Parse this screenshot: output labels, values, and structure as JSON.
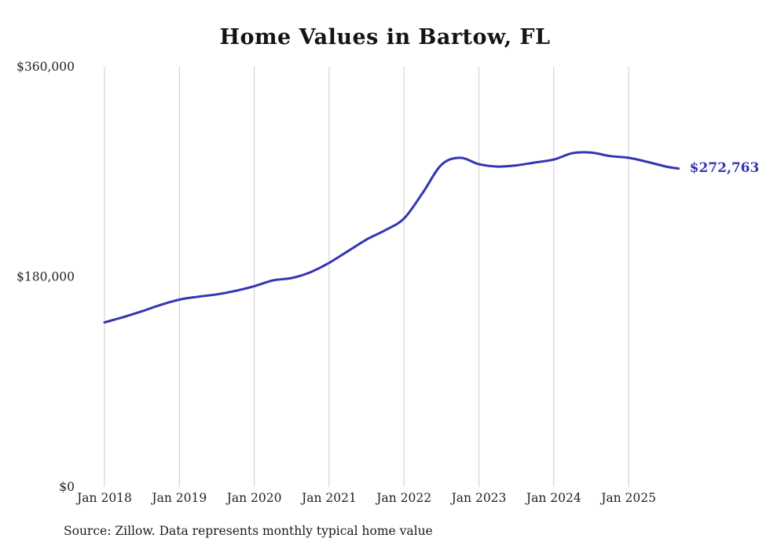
{
  "title": "Home Values in Bartow, FL",
  "source": "Source: Zillow. Data represents monthly typical home value",
  "latest_value_label": "$272,763",
  "colors": {
    "line": "#3535b2",
    "gridline": "#cccccc",
    "axis_text": "#222222",
    "label_text": "#3535b2"
  },
  "chart_data": {
    "type": "line",
    "title": "Home Values in Bartow, FL",
    "xlabel": "",
    "ylabel": "",
    "ylim": [
      0,
      360000
    ],
    "grid": "vertical-only",
    "legend": "none",
    "y_ticks": [
      {
        "label": "$0",
        "value": 0
      },
      {
        "label": "$180,000",
        "value": 180000
      },
      {
        "label": "$360,000",
        "value": 360000
      }
    ],
    "x_ticks": [
      "Jan 2018",
      "Jan 2019",
      "Jan 2020",
      "Jan 2021",
      "Jan 2022",
      "Jan 2023",
      "Jan 2024",
      "Jan 2025"
    ],
    "series": [
      {
        "name": "Typical home value",
        "x": [
          "2018-01",
          "2018-04",
          "2018-07",
          "2018-10",
          "2019-01",
          "2019-04",
          "2019-07",
          "2019-10",
          "2020-01",
          "2020-04",
          "2020-07",
          "2020-10",
          "2021-01",
          "2021-04",
          "2021-07",
          "2021-10",
          "2022-01",
          "2022-04",
          "2022-07",
          "2022-10",
          "2023-01",
          "2023-04",
          "2023-07",
          "2023-10",
          "2024-01",
          "2024-04",
          "2024-07",
          "2024-10",
          "2025-01",
          "2025-04",
          "2025-07",
          "2025-09"
        ],
        "values": [
          141000,
          145500,
          150500,
          156000,
          160500,
          163000,
          165000,
          168000,
          172000,
          177000,
          179000,
          184000,
          192000,
          202000,
          212000,
          220000,
          230000,
          252000,
          276000,
          282000,
          276500,
          274500,
          275500,
          278000,
          280500,
          286000,
          286500,
          283500,
          282000,
          278500,
          274500,
          272763
        ]
      }
    ],
    "end_label": "$272,763",
    "annotations": [
      {
        "text": "$272,763",
        "attached_to": "last-point"
      }
    ]
  }
}
